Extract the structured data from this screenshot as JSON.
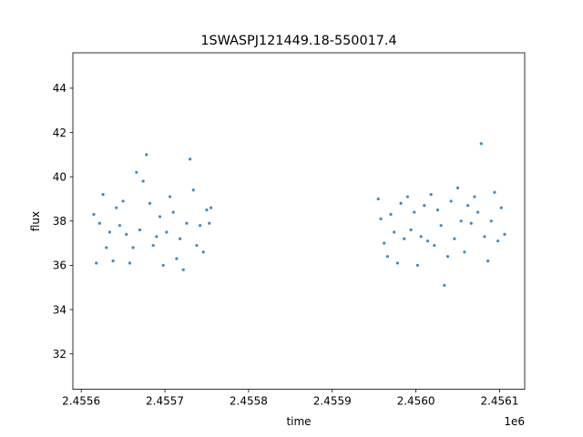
{
  "chart_data": {
    "type": "scatter",
    "title": "1SWASPJ121449.18-550017.4",
    "xlabel": "time",
    "ylabel": "flux",
    "x_offset_label": "1e6",
    "xlim": [
      2455590,
      2456130
    ],
    "ylim": [
      30.4,
      45.6
    ],
    "x_ticks": [
      2455600,
      2455700,
      2455800,
      2455900,
      2456000,
      2456100
    ],
    "x_tick_labels": [
      "2.4556",
      "2.4557",
      "2.4558",
      "2.4559",
      "2.4560",
      "2.4561"
    ],
    "y_ticks": [
      32,
      34,
      36,
      38,
      40,
      42,
      44
    ],
    "y_tick_labels": [
      "32",
      "34",
      "36",
      "38",
      "40",
      "42",
      "44"
    ],
    "grid": false,
    "legend": "none",
    "series": [
      {
        "color": "#1f77b4",
        "marker": "point",
        "x": [
          2455615,
          2455618,
          2455622,
          2455626,
          2455630,
          2455634,
          2455638,
          2455642,
          2455646,
          2455650,
          2455654,
          2455658,
          2455662,
          2455666,
          2455670,
          2455674,
          2455678,
          2455682,
          2455686,
          2455690,
          2455694,
          2455698,
          2455702,
          2455706,
          2455710,
          2455714,
          2455718,
          2455722,
          2455726,
          2455730,
          2455734,
          2455738,
          2455742,
          2455746,
          2455750,
          2455753,
          2455755,
          2455955,
          2455958,
          2455962,
          2455966,
          2455970,
          2455974,
          2455978,
          2455982,
          2455986,
          2455990,
          2455994,
          2455998,
          2456002,
          2456006,
          2456010,
          2456014,
          2456018,
          2456022,
          2456026,
          2456030,
          2456034,
          2456038,
          2456042,
          2456046,
          2456050,
          2456054,
          2456058,
          2456062,
          2456066,
          2456070,
          2456074,
          2456078,
          2456082,
          2456086,
          2456090,
          2456094,
          2456098,
          2456102,
          2456106
        ],
        "y": [
          38.3,
          36.1,
          37.9,
          39.2,
          36.8,
          37.5,
          36.2,
          38.6,
          37.8,
          38.9,
          37.4,
          36.1,
          36.8,
          40.2,
          37.6,
          39.8,
          41.0,
          38.8,
          36.9,
          37.3,
          38.2,
          36.0,
          37.5,
          39.1,
          38.4,
          36.3,
          37.2,
          35.8,
          37.9,
          40.8,
          39.4,
          36.9,
          37.8,
          36.6,
          38.5,
          37.9,
          38.6,
          39.0,
          38.1,
          37.0,
          36.4,
          38.3,
          37.5,
          36.1,
          38.8,
          37.2,
          39.1,
          37.6,
          38.4,
          36.0,
          37.3,
          38.7,
          37.1,
          39.2,
          36.9,
          38.5,
          37.8,
          35.1,
          36.4,
          38.9,
          37.2,
          39.5,
          38.0,
          36.6,
          38.7,
          37.9,
          39.1,
          38.4,
          41.5,
          37.3,
          36.2,
          38.0,
          39.3,
          37.1,
          38.6,
          37.4
        ]
      }
    ]
  }
}
